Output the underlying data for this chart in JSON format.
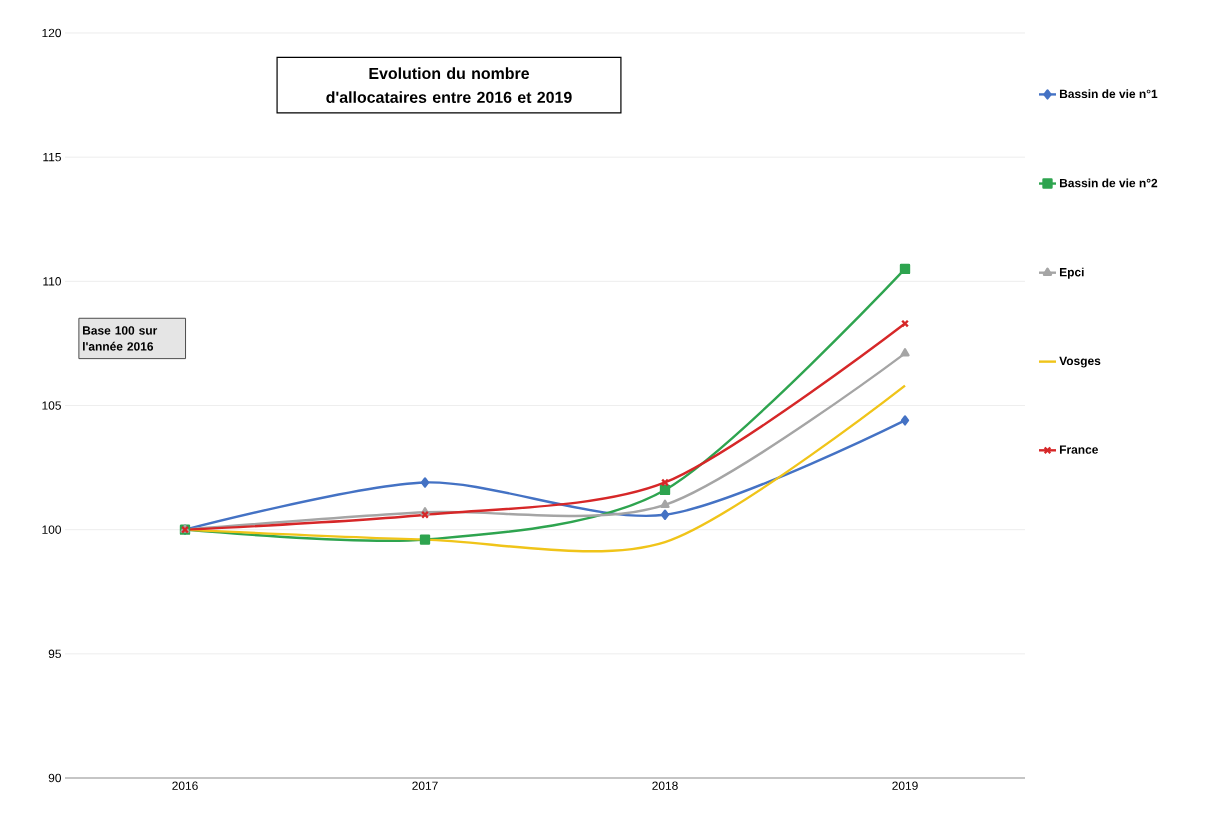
{
  "chart_data": {
    "type": "line",
    "title": "Evolution du nombre d'allocataires entre 2016 et 2019",
    "categories": [
      "2016",
      "2017",
      "2018",
      "2019"
    ],
    "series": [
      {
        "name": "Bassin de vie n°1",
        "color": "#4472c4",
        "marker": "diamond",
        "values": [
          100,
          101.9,
          100.6,
          104.4
        ]
      },
      {
        "name": "Bassin de vie n°2",
        "color": "#2ea44f",
        "marker": "square",
        "values": [
          100,
          99.6,
          101.6,
          110.5
        ]
      },
      {
        "name": "Epci",
        "color": "#a5a5a5",
        "marker": "triangle",
        "values": [
          100,
          100.7,
          101.0,
          107.1
        ]
      },
      {
        "name": "Vosges",
        "color": "#f0c419",
        "marker": "none",
        "values": [
          100,
          99.6,
          99.5,
          105.8
        ]
      },
      {
        "name": "France",
        "color": "#d62728",
        "marker": "cross",
        "values": [
          100,
          100.6,
          101.9,
          108.3
        ]
      }
    ],
    "ylim": [
      90,
      120
    ],
    "yticks": [
      90,
      95,
      100,
      105,
      110,
      115,
      120
    ],
    "grid": "y",
    "legend": "right",
    "annotations": [
      "Base 100 sur l'année 2016"
    ]
  }
}
